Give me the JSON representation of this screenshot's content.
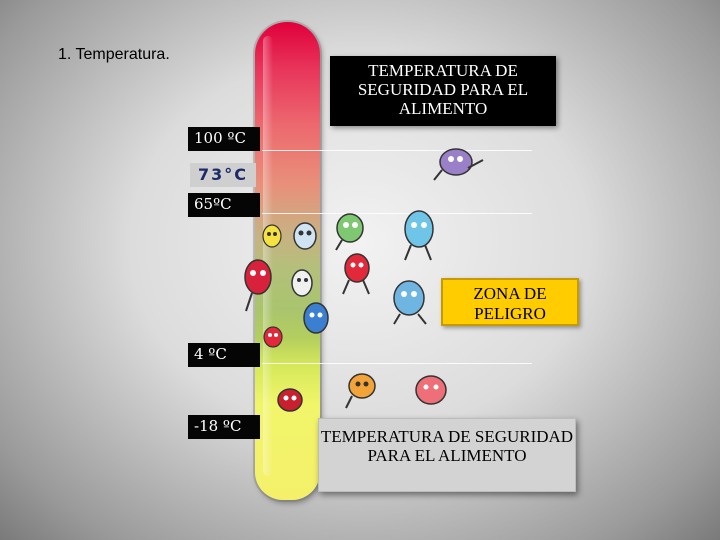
{
  "slide": {
    "title": "1. Temperatura."
  },
  "thermometer": {
    "marks": [
      {
        "label": "100 ºC"
      },
      {
        "label": "65ºC"
      },
      {
        "label": "4 ºC"
      },
      {
        "label": "-18 ºC"
      }
    ],
    "marker_73": "73°C"
  },
  "boxes": {
    "safety_top": "TEMPERATURA DE SEGURIDAD PARA EL ALIMENTO",
    "danger_zone": "ZONA DE PELIGRO",
    "safety_bottom": "TEMPERATURA DE SEGURIDAD PARA EL ALIMENTO"
  },
  "colors": {
    "hot": "#e0003a",
    "danger_mid": "#a9c46e",
    "cold": "#f5f06a",
    "danger_box": "#ffcc00"
  },
  "icons": [
    "germ-icon"
  ]
}
